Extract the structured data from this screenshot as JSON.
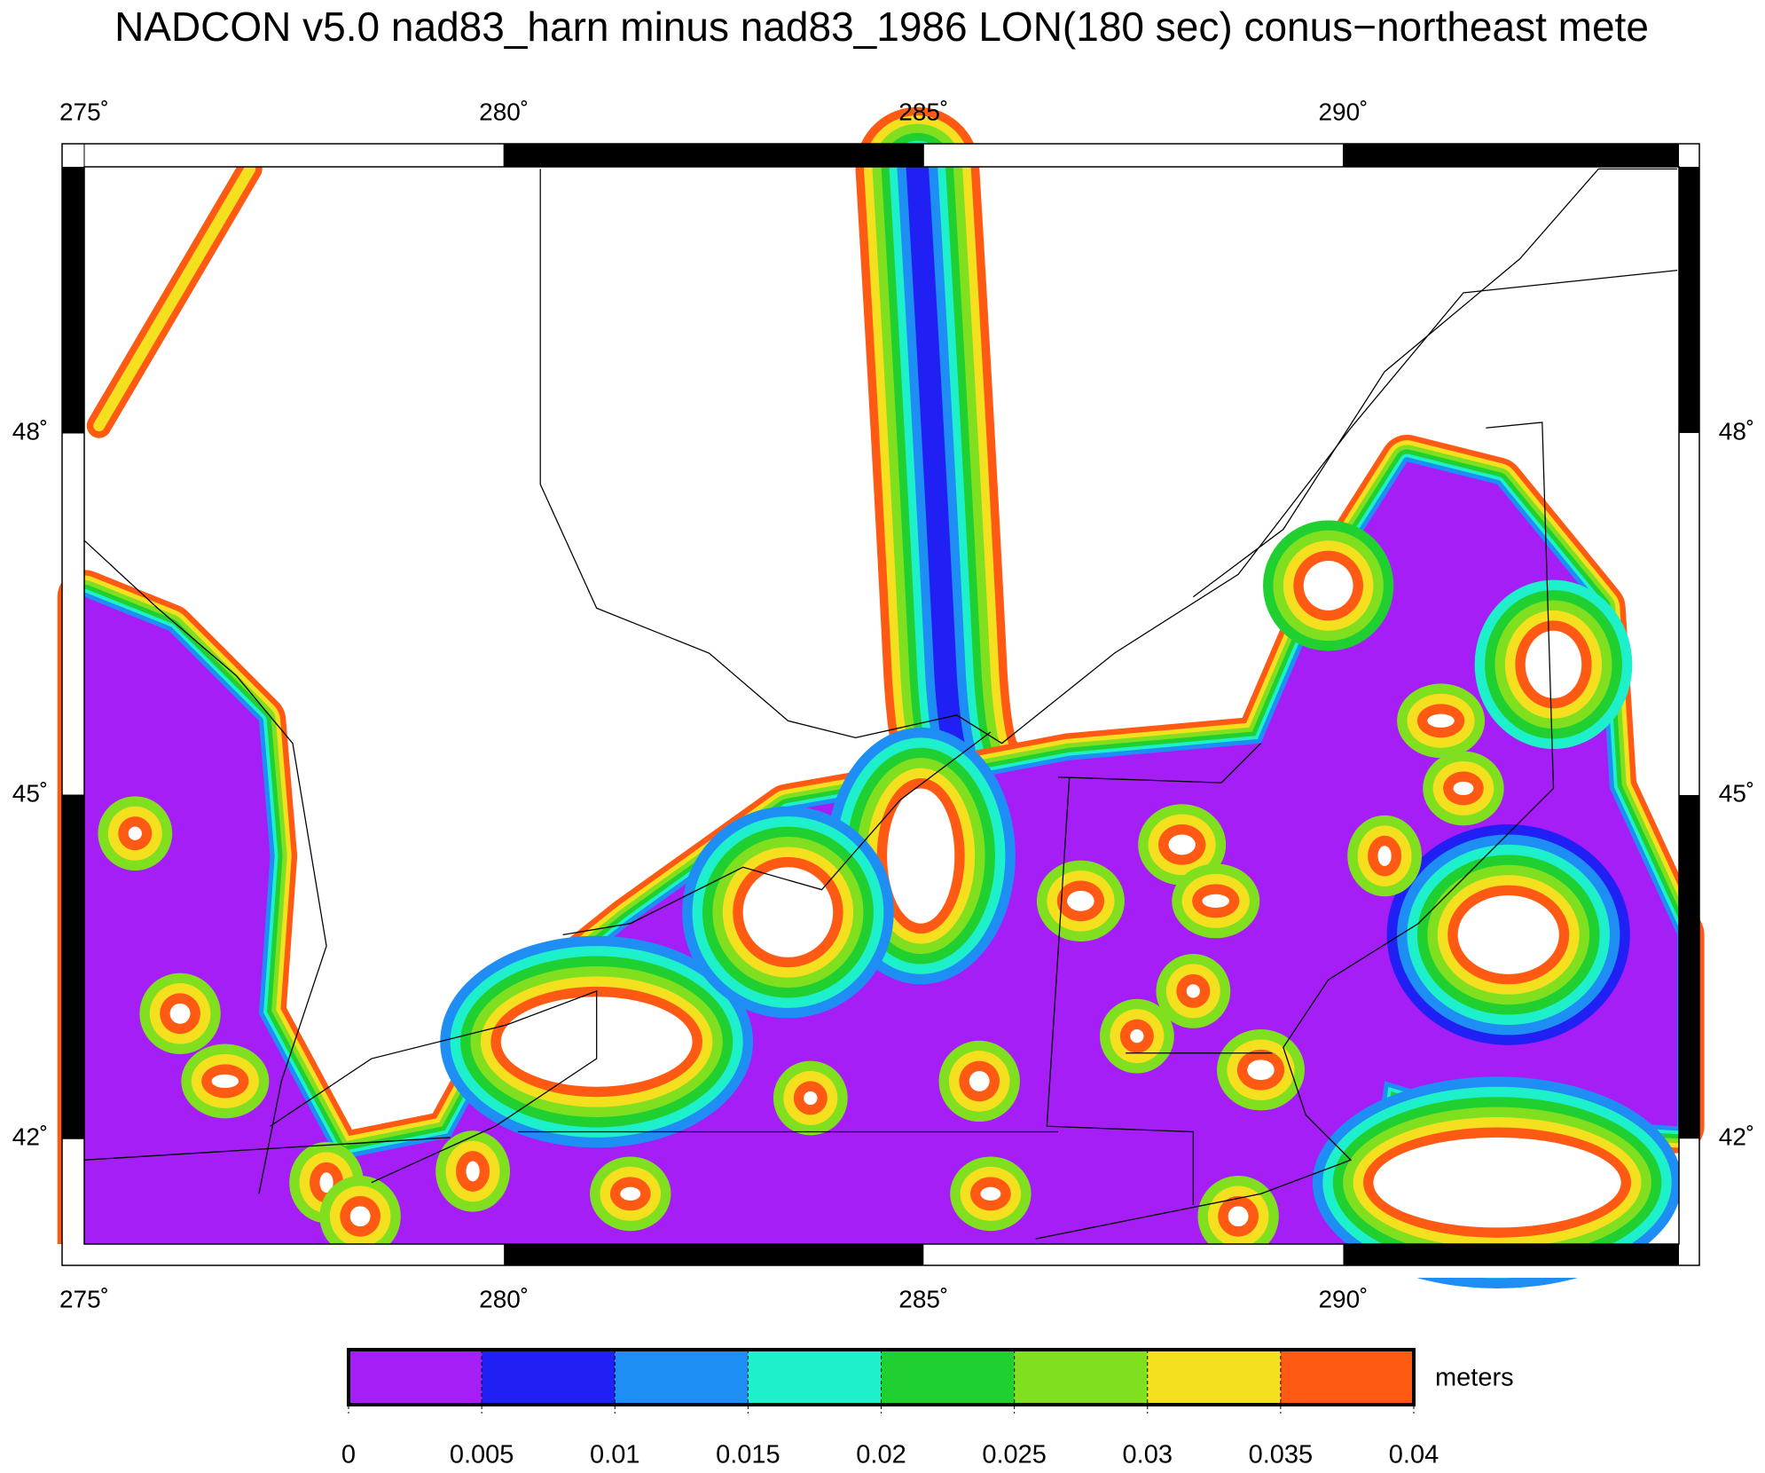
{
  "title": "NADCON v5.0 nad83_harn minus nad83_1986 LON(180 sec) conus−northeast mete",
  "map": {
    "lon_range": [
      275,
      294
    ],
    "lat_range": [
      41.05,
      50.1
    ],
    "lon_ticks": [
      {
        "value": 275,
        "label": "275˚"
      },
      {
        "value": 280,
        "label": "280˚"
      },
      {
        "value": 285,
        "label": "285˚"
      },
      {
        "value": 290,
        "label": "290˚"
      }
    ],
    "lat_ticks": [
      {
        "value": 48,
        "label": "48˚"
      },
      {
        "value": 45,
        "label": "45˚"
      },
      {
        "value": 42,
        "label": "42˚"
      }
    ],
    "colorbar": {
      "range": [
        0,
        0.04
      ],
      "ticks": [
        0,
        0.005,
        0.01,
        0.015,
        0.02,
        0.025,
        0.03,
        0.035,
        0.04
      ],
      "colors": [
        "#a41ef5",
        "#2020f5",
        "#1e8ef5",
        "#1ef0cc",
        "#20d030",
        "#80e020",
        "#f5e020",
        "#ff5a14"
      ],
      "unit_label": "meters"
    }
  }
}
